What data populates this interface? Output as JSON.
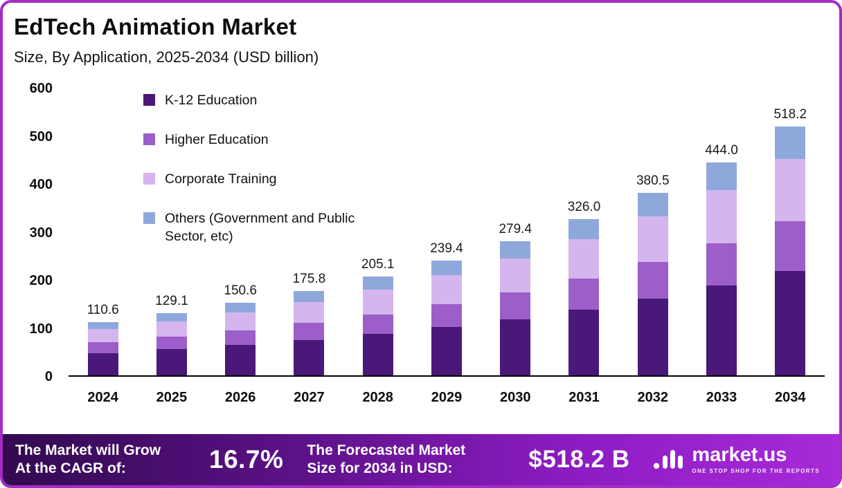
{
  "header": {
    "title": "EdTech Animation Market",
    "subtitle": "Size, By Application, 2025-2034 (USD billion)"
  },
  "chart_data": {
    "type": "bar",
    "stacked": true,
    "title": "EdTech Animation Market Size, By Application, 2025-2034 (USD billion)",
    "categories": [
      "2024",
      "2025",
      "2026",
      "2027",
      "2028",
      "2029",
      "2030",
      "2031",
      "2032",
      "2033",
      "2034"
    ],
    "series": [
      {
        "name": "K-12 Education",
        "color": "#4a1878",
        "values": [
          46.5,
          54.2,
          63.3,
          73.8,
          86.1,
          100.5,
          117.3,
          136.9,
          159.8,
          186.5,
          217.6
        ]
      },
      {
        "name": "Higher Education",
        "color": "#9c5ec9",
        "values": [
          22.1,
          25.8,
          30.1,
          35.2,
          41.0,
          47.9,
          55.9,
          65.2,
          76.1,
          88.8,
          103.6
        ]
      },
      {
        "name": "Corporate Training",
        "color": "#d5b5ee",
        "values": [
          27.6,
          32.3,
          37.6,
          44.0,
          51.3,
          59.9,
          69.9,
          81.5,
          95.1,
          111.0,
          129.6
        ]
      },
      {
        "name": "Others (Government and Public Sector, etc)",
        "color": "#8fa8dc",
        "values": [
          14.4,
          16.8,
          19.6,
          22.8,
          26.7,
          31.1,
          36.3,
          42.4,
          49.5,
          57.7,
          67.4
        ]
      }
    ],
    "totals": [
      110.6,
      129.1,
      150.6,
      175.8,
      205.1,
      239.4,
      279.4,
      326.0,
      380.5,
      444.0,
      518.2
    ],
    "xlabel": "",
    "ylabel": "",
    "ylim": [
      0,
      600
    ],
    "yticks": [
      0,
      100,
      200,
      300,
      400,
      500,
      600
    ],
    "grid": false,
    "legend_position": "top-left"
  },
  "footer": {
    "cagr_label": "The Market will Grow\nAt the CAGR of:",
    "cagr_value": "16.7%",
    "forecast_label": "The Forecasted Market\nSize for 2034 in USD:",
    "forecast_value": "$518.2 B",
    "brand": "market.us",
    "brand_tagline": "ONE STOP SHOP FOR THE REPORTS"
  }
}
